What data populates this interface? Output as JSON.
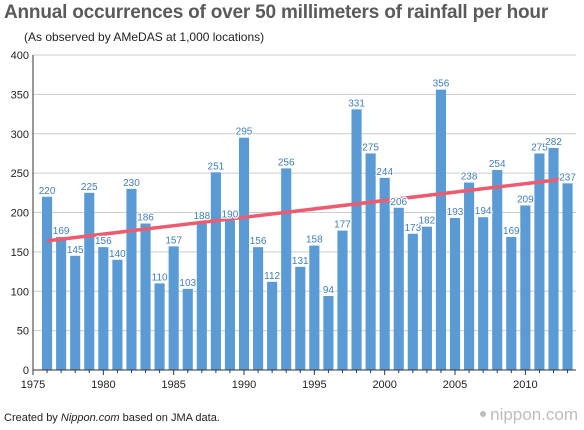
{
  "title": "Annual occurrences of over 50 millimeters of rainfall per hour",
  "subtitle": "(As observed by AMeDAS at 1,000 locations)",
  "footer": {
    "credit_prefix": "Created by ",
    "credit_site": "Nippon.com",
    "credit_suffix": " based on JMA data.",
    "brand": "nippon.com"
  },
  "colors": {
    "bar": "#5b9bd5",
    "trend": "#ee5a6f",
    "label": "#3d7fc0",
    "grid": "#cccccc"
  },
  "chart_data": {
    "type": "bar",
    "title": "Annual occurrences of over 50 millimeters of rainfall per hour",
    "subtitle": "(As observed by AMeDAS at 1,000 locations)",
    "xlabel": "",
    "ylabel": "",
    "ylim": [
      0,
      400
    ],
    "yticks": [
      0,
      50,
      100,
      150,
      200,
      250,
      300,
      350,
      400
    ],
    "xticks": [
      1975,
      1980,
      1985,
      1990,
      1995,
      2000,
      2005,
      2010
    ],
    "grid": true,
    "x": [
      1976,
      1977,
      1978,
      1979,
      1980,
      1981,
      1982,
      1983,
      1984,
      1985,
      1986,
      1987,
      1988,
      1989,
      1990,
      1991,
      1992,
      1993,
      1994,
      1995,
      1996,
      1997,
      1998,
      1999,
      2000,
      2001,
      2002,
      2003,
      2004,
      2005,
      2006,
      2007,
      2008,
      2009,
      2010,
      2011,
      2012,
      2013
    ],
    "values": [
      220,
      169,
      145,
      225,
      156,
      140,
      230,
      186,
      110,
      157,
      103,
      188,
      251,
      190,
      295,
      156,
      112,
      256,
      131,
      158,
      94,
      177,
      331,
      275,
      244,
      206,
      173,
      182,
      356,
      193,
      238,
      194,
      254,
      169,
      209,
      275,
      282,
      237
    ],
    "trend": {
      "x": [
        1976,
        2013
      ],
      "y": [
        164,
        243
      ]
    }
  }
}
